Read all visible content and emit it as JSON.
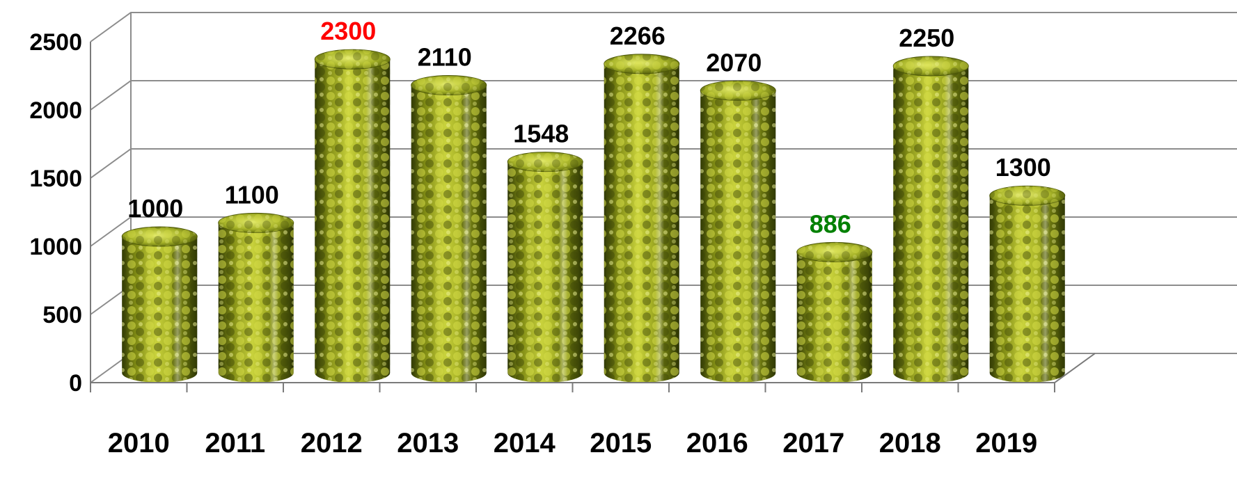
{
  "chart_data": {
    "type": "bar",
    "style": "3d-cylinder",
    "categories": [
      "2010",
      "2011",
      "2012",
      "2013",
      "2014",
      "2015",
      "2016",
      "2017",
      "2018",
      "2019"
    ],
    "values": [
      1000,
      1100,
      2300,
      2110,
      1548,
      2266,
      2070,
      886,
      2250,
      1300
    ],
    "data_labels": [
      "1000",
      "1100",
      "2300",
      "2110",
      "1548",
      "2266",
      "2070",
      "886",
      "2250",
      "1300"
    ],
    "highlight": {
      "max_index": 2,
      "min_index": 7
    },
    "colors": {
      "label_default": "#000000",
      "label_max": "#ff0000",
      "label_min": "#008000",
      "bar_base": "#9aa51f",
      "bar_highlight": "#d6df4a",
      "bar_shadow": "#3f4a08"
    },
    "y_ticks": [
      0,
      500,
      1000,
      1500,
      2000,
      2500
    ],
    "y_tick_labels": [
      "0",
      "500",
      "1000",
      "1500",
      "2000",
      "2500"
    ],
    "ylim": [
      0,
      2500
    ],
    "grid": true,
    "legend": "none",
    "title": "",
    "xlabel": "",
    "ylabel": ""
  }
}
